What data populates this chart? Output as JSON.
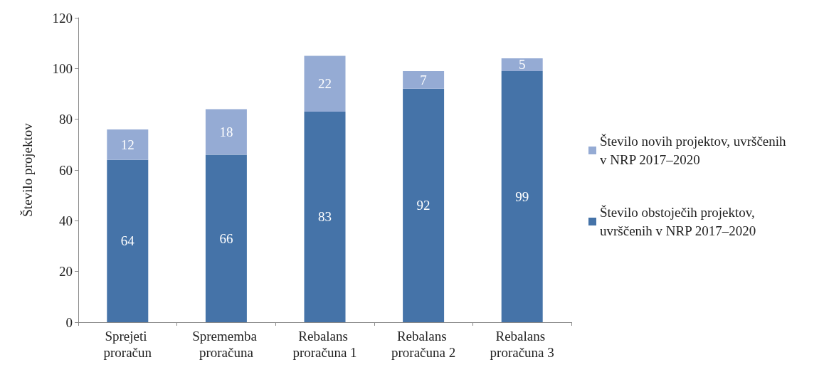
{
  "chart_data": {
    "type": "bar",
    "stacked": true,
    "ylabel": "Število projektov",
    "categories": [
      "Sprejeti proračun",
      "Sprememba proračuna",
      "Rebalans proračuna 1",
      "Rebalans proračuna 2",
      "Rebalans proračuna 3"
    ],
    "series": [
      {
        "name": "Število obstoječih projektov, uvrščenih v NRP 2017–2020",
        "color": "#4573a8",
        "values": [
          64,
          66,
          83,
          92,
          99
        ]
      },
      {
        "name": "Število novih projektov, uvrščenih v NRP 2017–2020",
        "color": "#95abd4",
        "values": [
          12,
          18,
          22,
          7,
          5
        ]
      }
    ],
    "ylim": [
      0,
      120
    ],
    "yticks": [
      0,
      20,
      40,
      60,
      80,
      100,
      120
    ],
    "grid": false,
    "legend": "right",
    "data_labels": true
  }
}
